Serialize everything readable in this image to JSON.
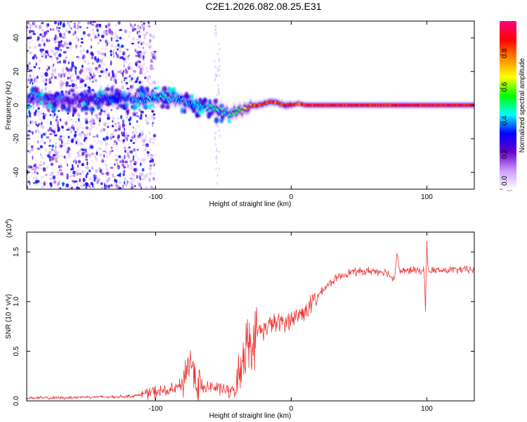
{
  "figure_title": "C2E1.2026.082.08.25.E31",
  "chart_data": [
    {
      "type": "heatmap",
      "name": "spectrogram",
      "xlabel": "Height of straight line (km)",
      "ylabel": "Frequency (Hz)",
      "xlim": [
        -195,
        135
      ],
      "ylim": [
        -50,
        50
      ],
      "xticks": [
        -100,
        0,
        100
      ],
      "xtick_labels": [
        "-100",
        "0",
        "100"
      ],
      "yticks": [
        -40,
        -20,
        0,
        20,
        40
      ],
      "ytick_labels": [
        "-40",
        "-20",
        "0",
        "20",
        "40"
      ],
      "colorbar": {
        "label": "Normalized spectral amplitude",
        "range": [
          0,
          1
        ],
        "ticks": [
          0,
          0.2,
          0.4,
          0.6,
          0.8
        ],
        "tick_labels": [
          "0.0",
          "0.2",
          "0.4",
          "0.6",
          "0.8"
        ],
        "stops": [
          "#ffffff",
          "#cc99ff",
          "#6600cc",
          "#0000ff",
          "#00ffff",
          "#00ff00",
          "#ffff00",
          "#ff8800",
          "#ff0000",
          "#ff0080"
        ]
      },
      "ridge": {
        "x": [
          -195,
          -170,
          -150,
          -130,
          -110,
          -95,
          -85,
          -75,
          -65,
          -55,
          -45,
          -40,
          -35,
          -30,
          -25,
          -20,
          -15,
          -10,
          -5,
          0,
          5,
          10,
          20,
          40,
          60,
          80,
          100,
          120,
          135
        ],
        "freq": [
          4,
          3,
          3,
          4,
          4,
          5,
          3,
          1,
          -1,
          -3,
          -5,
          -4,
          -2,
          -1,
          0,
          1,
          2,
          1,
          0,
          0,
          1,
          0,
          0,
          0,
          0,
          0,
          0,
          0,
          0
        ],
        "amplitude": [
          0.15,
          0.2,
          0.25,
          0.35,
          0.45,
          0.45,
          0.45,
          0.4,
          0.45,
          0.5,
          0.55,
          0.6,
          0.75,
          0.85,
          0.9,
          0.88,
          0.92,
          0.85,
          0.9,
          0.92,
          0.9,
          0.92,
          0.95,
          0.95,
          0.95,
          0.95,
          0.95,
          0.95,
          0.95
        ]
      },
      "noise_region_x": [
        -195,
        -110
      ]
    },
    {
      "type": "line",
      "name": "snr",
      "xlabel": "Height of straight line (km)",
      "ylabel": "SNR (10 * v/v)",
      "y_multiplier_label": "(x10",
      "y_multiplier_exp": "4",
      "y_multiplier_close": ")",
      "xlim": [
        -195,
        135
      ],
      "ylim": [
        0,
        1.7
      ],
      "xticks": [
        -100,
        0,
        100
      ],
      "xtick_labels": [
        "-100",
        "0",
        "100"
      ],
      "yticks": [
        0,
        0.5,
        1.0,
        1.5
      ],
      "ytick_labels": [
        "0.0",
        "0.5",
        "1.0",
        "1.5"
      ],
      "color": "#ee3333",
      "series": [
        {
          "name": "SNR",
          "x": [
            -195,
            -170,
            -150,
            -130,
            -115,
            -110,
            -100,
            -90,
            -85,
            -80,
            -76,
            -72,
            -70,
            -66,
            -60,
            -50,
            -45,
            -40,
            -38,
            -35,
            -33,
            -30,
            -28,
            -25,
            -20,
            -15,
            -10,
            -5,
            0,
            5,
            10,
            15,
            20,
            25,
            30,
            35,
            40,
            45,
            50,
            60,
            70,
            76,
            78,
            80,
            85,
            90,
            95,
            98,
            99,
            100,
            101,
            105,
            110,
            120,
            135
          ],
          "values": [
            0.03,
            0.03,
            0.04,
            0.04,
            0.05,
            0.07,
            0.09,
            0.1,
            0.12,
            0.18,
            0.38,
            0.35,
            0.2,
            0.12,
            0.14,
            0.12,
            0.09,
            0.12,
            0.3,
            0.5,
            0.6,
            0.62,
            0.55,
            0.7,
            0.72,
            0.78,
            0.78,
            0.8,
            0.82,
            0.86,
            0.9,
            0.98,
            1.06,
            1.14,
            1.2,
            1.25,
            1.28,
            1.3,
            1.3,
            1.31,
            1.3,
            1.22,
            1.5,
            1.3,
            1.31,
            1.32,
            1.3,
            1.32,
            0.9,
            1.65,
            1.3,
            1.32,
            1.31,
            1.32,
            1.32
          ]
        }
      ]
    }
  ]
}
